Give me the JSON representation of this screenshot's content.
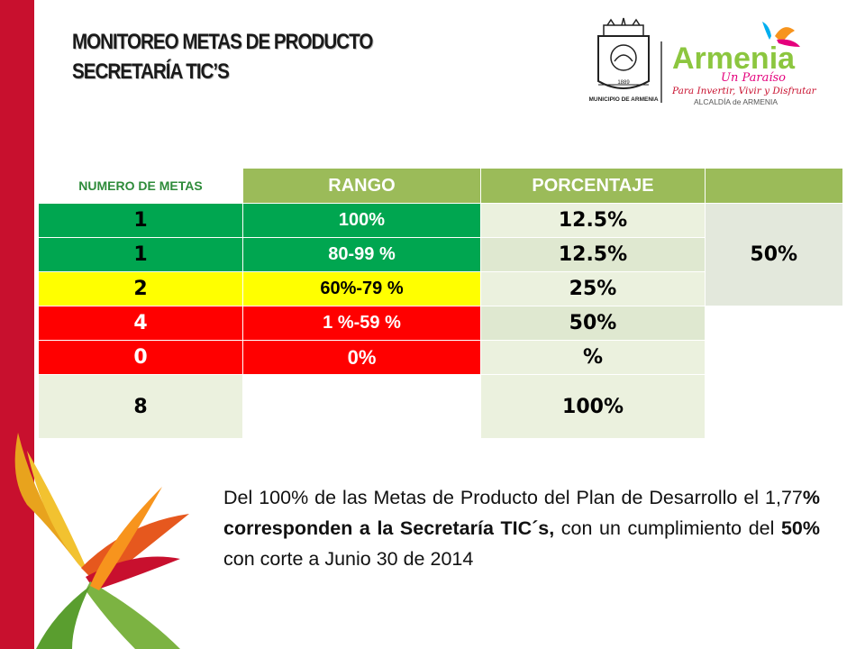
{
  "title": {
    "line1": "MONITOREO METAS DE PRODUCTO",
    "line2": "SECRETARÍA TIC’S"
  },
  "logos": {
    "seal_text": "MUNICIPIO DE ARMENIA",
    "seal_year": "1889",
    "brand_name": "Armenia",
    "brand_tagline": "Un Paraíso",
    "brand_slogan": "Para Invertir, Vivir y Disfrutar",
    "brand_office": "ALCALDÍA de ARMENIA"
  },
  "table": {
    "headers": [
      "NUMERO DE METAS",
      "RANGO",
      "PORCENTAJE"
    ],
    "rows": [
      {
        "count": "1",
        "range": "100%",
        "percent": "12.5%"
      },
      {
        "count": "1",
        "range": "80-99  %",
        "percent": "12.5%"
      },
      {
        "count": "2",
        "range": "60%-79 %",
        "percent": "25%"
      },
      {
        "count": "4",
        "range": "1  %-59 %",
        "percent": "50%"
      },
      {
        "count": "0",
        "range": "0%",
        "percent": "%"
      }
    ],
    "merged_value": "50%",
    "total": {
      "count": "8",
      "percent": "100%"
    }
  },
  "paragraph": {
    "p1": "Del 100% de las Metas de Producto del Plan de Desarrollo el 1,77",
    "p2": "% corresponden a la Secretaría TIC´s,",
    "p3": " con un cumplimiento del  ",
    "p4": "50%",
    "p5": " con corte a Junio 30 de 2014"
  },
  "colors": {
    "accent_red": "#c8102e",
    "green": "#00a650",
    "yellow": "#ffff00",
    "red": "#ff0000",
    "header_green": "#9bbb59"
  }
}
